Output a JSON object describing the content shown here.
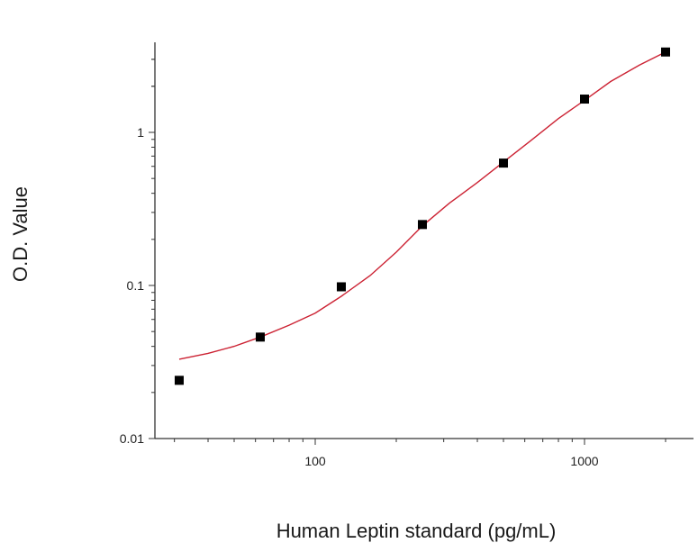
{
  "chart_data": {
    "type": "scatter",
    "title": "",
    "xlabel": "Human Leptin standard (pg/mL)",
    "ylabel": "O.D. Value",
    "x_scale": "log",
    "y_scale": "log",
    "xlim": [
      22,
      2700
    ],
    "ylim": [
      0.01,
      4.5
    ],
    "x_ticks": [
      100,
      1000
    ],
    "x_tick_labels": [
      "100",
      "1000"
    ],
    "y_ticks": [
      0.01,
      0.1,
      1
    ],
    "y_tick_labels": [
      "0.01",
      "0.1",
      "1"
    ],
    "grid": false,
    "legend": "none",
    "series": [
      {
        "kind": "points",
        "x": [
          31.25,
          62.5,
          125,
          250,
          500,
          1000,
          2000
        ],
        "y": [
          0.024,
          0.046,
          0.098,
          0.25,
          0.63,
          1.65,
          3.35
        ],
        "color": "#000000"
      },
      {
        "kind": "fit-curve",
        "x": [
          31.25,
          40,
          50,
          62.5,
          80,
          100,
          125,
          160,
          200,
          250,
          315,
          400,
          500,
          630,
          800,
          1000,
          1250,
          1600,
          2000
        ],
        "y": [
          0.033,
          0.036,
          0.04,
          0.046,
          0.055,
          0.066,
          0.085,
          0.116,
          0.165,
          0.245,
          0.345,
          0.47,
          0.64,
          0.88,
          1.23,
          1.62,
          2.15,
          2.75,
          3.35
        ],
        "color": "#cc2233"
      }
    ]
  }
}
